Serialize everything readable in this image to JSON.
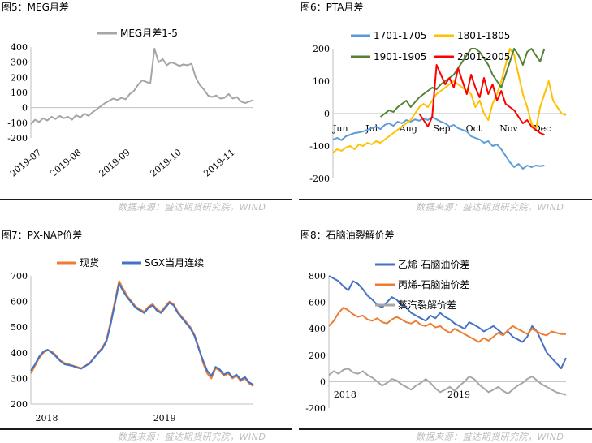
{
  "figures": [
    {
      "title": "图5：MEG月差",
      "source": "数据来源：盛达期货研究院，WIND"
    },
    {
      "title": "图6：PTA月差",
      "source": "数据来源：盛达期货研究院，WIND"
    },
    {
      "title": "图7：PX-NAP价差",
      "source": "数据来源：盛达期货研究院，WIND"
    },
    {
      "title": "图8：石脑油裂解价差",
      "source": "数据来源：盛达期货研究院，WIND"
    }
  ],
  "chart_data": [
    {
      "type": "line",
      "title": "图5：MEG月差",
      "ylim": [
        -200,
        400
      ],
      "yticks": [
        -200,
        -100,
        0,
        100,
        200,
        300,
        400
      ],
      "xlabels": [
        "2019-07",
        "2019-08",
        "2019-09",
        "2019-10",
        "2019-11"
      ],
      "grid": false,
      "legend": "top",
      "series": [
        {
          "name": "MEG月差1-5",
          "color": "#a6a6a6",
          "values": [
            -110,
            -80,
            -95,
            -70,
            -85,
            -60,
            -75,
            -55,
            -70,
            -60,
            -80,
            -50,
            -65,
            -40,
            -55,
            -30,
            -10,
            10,
            30,
            45,
            60,
            50,
            65,
            55,
            90,
            110,
            150,
            180,
            170,
            160,
            390,
            300,
            320,
            280,
            300,
            290,
            275,
            285,
            280,
            290,
            200,
            150,
            120,
            80,
            70,
            80,
            60,
            65,
            90,
            60,
            70,
            40,
            30,
            40,
            50
          ]
        }
      ]
    },
    {
      "type": "line",
      "title": "图6：PTA月差",
      "ylim": [
        -200,
        200
      ],
      "yticks": [
        -200,
        -100,
        0,
        100,
        200
      ],
      "xlabels": [
        "Jun",
        "Jul",
        "Aug",
        "Sep",
        "Oct",
        "Nov",
        "Dec"
      ],
      "grid": false,
      "legend": "top",
      "series": [
        {
          "name": "1701-1705",
          "color": "#5b9bd5",
          "values": [
            -80,
            -75,
            -82,
            -70,
            -65,
            -60,
            -58,
            -55,
            -50,
            -45,
            -40,
            -48,
            -35,
            -30,
            -38,
            -25,
            -30,
            -20,
            -25,
            -18,
            -22,
            -15,
            -20,
            -10,
            -18,
            -25,
            -30,
            -40,
            -35,
            -45,
            -50,
            -55,
            -70,
            -75,
            -80,
            -90,
            -85,
            -100,
            -95,
            -110,
            -130,
            -150,
            -165,
            -155,
            -170,
            -160,
            -165,
            -160,
            -162,
            -160
          ]
        },
        {
          "name": "1801-1805",
          "color": "#ffc000",
          "values": [
            -120,
            -110,
            -115,
            -105,
            -100,
            -110,
            -95,
            -100,
            -90,
            -95,
            -85,
            -90,
            -80,
            -70,
            -60,
            -50,
            -40,
            -30,
            -20,
            0,
            20,
            30,
            20,
            40,
            60,
            70,
            80,
            90,
            100,
            90,
            80,
            70,
            60,
            20,
            40,
            0,
            -20,
            30,
            60,
            100,
            150,
            200,
            180,
            120,
            60,
            20,
            -30,
            -50,
            20,
            60,
            100,
            40,
            20,
            0,
            -5
          ]
        },
        {
          "name": "1901-1905",
          "color": "#548235",
          "values": [
            null,
            null,
            null,
            null,
            null,
            null,
            null,
            null,
            null,
            null,
            null,
            -10,
            0,
            10,
            5,
            20,
            30,
            40,
            20,
            35,
            50,
            60,
            70,
            80,
            75,
            90,
            100,
            110,
            120,
            140,
            160,
            180,
            200,
            200,
            190,
            170,
            150,
            120,
            100,
            80,
            120,
            160,
            200,
            180,
            150,
            190,
            200,
            180,
            160,
            200
          ]
        },
        {
          "name": "2001-2005",
          "color": "#ff0000",
          "values": [
            null,
            null,
            null,
            null,
            null,
            null,
            null,
            null,
            null,
            null,
            null,
            null,
            null,
            null,
            null,
            null,
            null,
            null,
            null,
            null,
            0,
            -20,
            -40,
            -10,
            150,
            120,
            90,
            110,
            80,
            140,
            100,
            60,
            120,
            80,
            50,
            110,
            60,
            90,
            40,
            70,
            30,
            20,
            10,
            -10,
            -30,
            -20,
            -40,
            -50,
            -60,
            -65
          ]
        }
      ]
    },
    {
      "type": "line",
      "title": "图7：PX-NAP价差",
      "ylim": [
        200,
        700
      ],
      "yticks": [
        200,
        300,
        400,
        500,
        600,
        700
      ],
      "xlabels": [
        "2018",
        "2019"
      ],
      "grid": false,
      "legend": "top",
      "series": [
        {
          "name": "现货",
          "color": "#ed7d31",
          "values": [
            320,
            350,
            380,
            400,
            410,
            405,
            390,
            370,
            360,
            355,
            350,
            345,
            340,
            350,
            360,
            380,
            400,
            420,
            450,
            520,
            600,
            680,
            650,
            620,
            600,
            580,
            570,
            560,
            580,
            590,
            570,
            560,
            580,
            600,
            590,
            560,
            540,
            520,
            500,
            470,
            420,
            360,
            320,
            300,
            340,
            330,
            310,
            320,
            300,
            310,
            290,
            300,
            280,
            270
          ]
        },
        {
          "name": "SGX当月连续",
          "color": "#4472c4",
          "values": [
            330,
            355,
            385,
            405,
            412,
            400,
            385,
            368,
            355,
            352,
            348,
            342,
            338,
            348,
            358,
            378,
            398,
            415,
            445,
            510,
            590,
            670,
            640,
            615,
            595,
            575,
            565,
            555,
            575,
            585,
            565,
            555,
            575,
            595,
            585,
            555,
            535,
            515,
            495,
            465,
            415,
            370,
            330,
            310,
            345,
            335,
            315,
            325,
            305,
            315,
            295,
            305,
            285,
            275
          ]
        }
      ]
    },
    {
      "type": "line",
      "title": "图8：石脑油裂解价差",
      "ylim": [
        -200,
        800
      ],
      "yticks": [
        -200,
        0,
        200,
        400,
        600,
        800
      ],
      "xlabels": [
        "2018",
        "2019"
      ],
      "grid": false,
      "legend": "top",
      "series": [
        {
          "name": "乙烯-石脑油价差",
          "color": "#4472c4",
          "values": [
            800,
            780,
            760,
            720,
            690,
            760,
            740,
            700,
            650,
            620,
            580,
            560,
            600,
            640,
            620,
            580,
            560,
            520,
            500,
            480,
            460,
            500,
            480,
            520,
            490,
            470,
            440,
            420,
            400,
            450,
            430,
            410,
            380,
            400,
            420,
            390,
            360,
            380,
            340,
            320,
            300,
            340,
            420,
            380,
            300,
            220,
            180,
            140,
            100,
            180
          ]
        },
        {
          "name": "丙烯-石脑油价差",
          "color": "#ed7d31",
          "values": [
            420,
            460,
            520,
            560,
            540,
            510,
            490,
            500,
            470,
            460,
            480,
            450,
            440,
            470,
            490,
            470,
            450,
            440,
            460,
            430,
            420,
            440,
            410,
            420,
            390,
            370,
            400,
            380,
            360,
            340,
            320,
            300,
            330,
            310,
            340,
            370,
            350,
            390,
            420,
            400,
            380,
            360,
            400,
            380,
            360,
            350,
            380,
            370,
            360,
            360
          ]
        },
        {
          "name": "蒸汽裂解价差",
          "color": "#a6a6a6",
          "values": [
            50,
            80,
            60,
            90,
            100,
            70,
            60,
            80,
            50,
            30,
            0,
            -30,
            -10,
            20,
            10,
            -20,
            -40,
            -60,
            -30,
            -10,
            20,
            -10,
            -50,
            -80,
            -60,
            -40,
            -70,
            -30,
            0,
            40,
            20,
            -20,
            -50,
            -80,
            -60,
            -40,
            -70,
            -90,
            -60,
            -30,
            -10,
            20,
            40,
            10,
            -20,
            -40,
            -60,
            -80,
            -90,
            -100
          ]
        }
      ]
    }
  ]
}
